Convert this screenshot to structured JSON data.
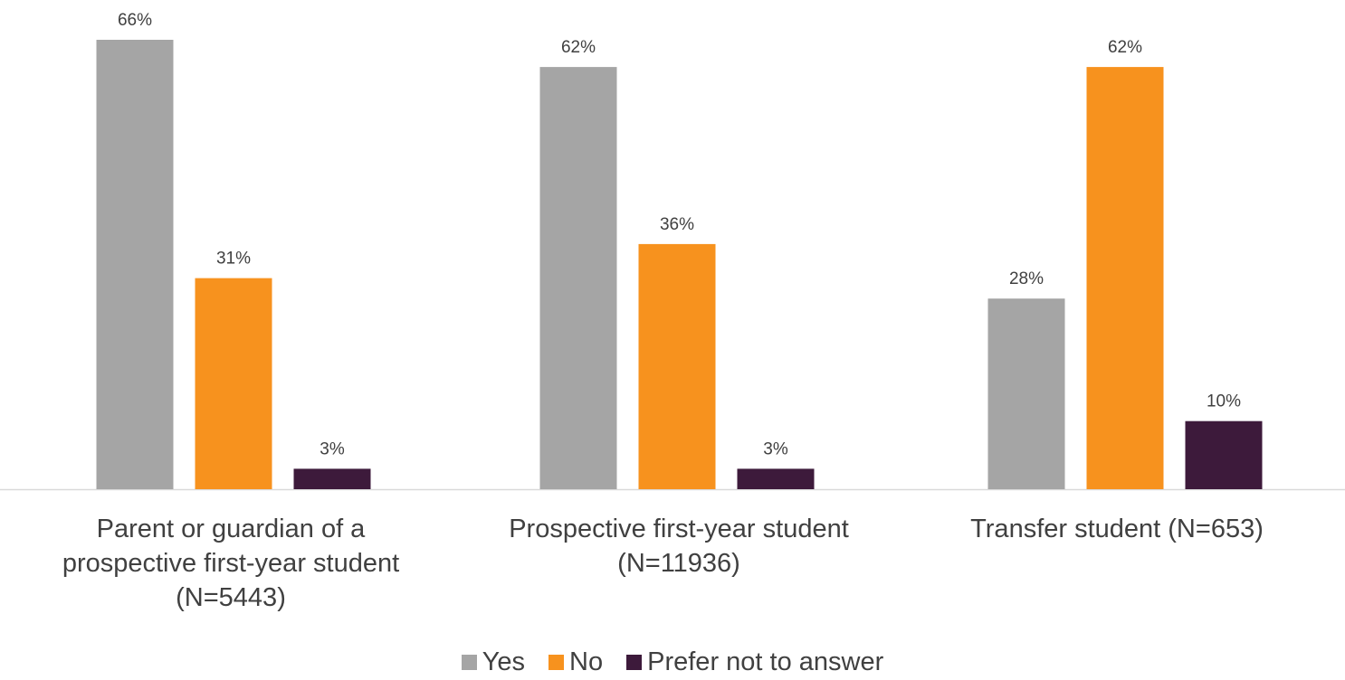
{
  "chart_data": {
    "type": "bar",
    "categories": [
      "Parent or guardian of a prospective first-year student (N=5443)",
      "Prospective first-year student (N=11936)",
      "Transfer student (N=653)"
    ],
    "category_label_lines": [
      [
        "Parent or guardian of a",
        "prospective first-year student",
        "(N=5443)"
      ],
      [
        "Prospective first-year student",
        "(N=11936)"
      ],
      [
        "Transfer student (N=653)"
      ]
    ],
    "series": [
      {
        "name": "Yes",
        "color": "#a5a5a5",
        "values": [
          66,
          62,
          28
        ],
        "labels": [
          "66%",
          "62%",
          "28%"
        ]
      },
      {
        "name": "No",
        "color": "#f7921e",
        "values": [
          31,
          36,
          62
        ],
        "labels": [
          "31%",
          "36%",
          "62%"
        ]
      },
      {
        "name": "Prefer not to answer",
        "color": "#3d1a3b",
        "values": [
          3,
          3,
          10
        ],
        "labels": [
          "3%",
          "3%",
          "10%"
        ]
      }
    ],
    "ylim": [
      0,
      66
    ],
    "grid": false,
    "legend_position": "bottom"
  }
}
